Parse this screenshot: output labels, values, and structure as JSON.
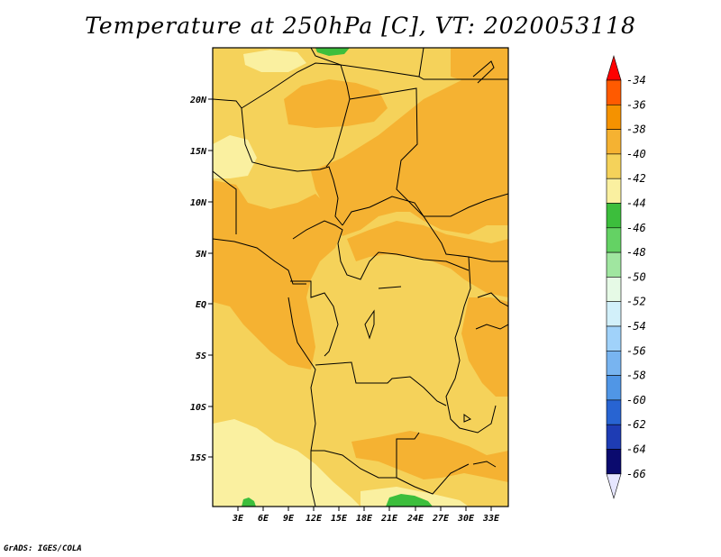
{
  "title": "Temperature at 250hPa [C], VT: 2020053118",
  "footer": "GrADS: IGES/COLA",
  "map": {
    "lon_labels": [
      "3E",
      "6E",
      "9E",
      "12E",
      "15E",
      "18E",
      "21E",
      "24E",
      "27E",
      "30E",
      "33E"
    ],
    "lat_labels": [
      "20N",
      "15N",
      "10N",
      "5N",
      "EQ",
      "5S",
      "10S",
      "15S"
    ]
  },
  "colorbar": {
    "labels": [
      "-34",
      "-36",
      "-38",
      "-40",
      "-42",
      "-44",
      "-46",
      "-48",
      "-50",
      "-52",
      "-54",
      "-56",
      "-58",
      "-60",
      "-62",
      "-64",
      "-66"
    ],
    "colors": [
      "#ff0000",
      "#ff5a00",
      "#f59200",
      "#f5b232",
      "#f5d25a",
      "#faf0a0",
      "#3cbe3c",
      "#64d264",
      "#a0e6a0",
      "#e6fae6",
      "#d2f0fa",
      "#a0d2fa",
      "#78b4f0",
      "#5096e6",
      "#2864d2",
      "#1e3cb4",
      "#0a0a6e",
      "#e6e6ff"
    ]
  },
  "colors": {
    "orange_dark": "#f5b232",
    "orange_light": "#f5d25a",
    "pale": "#faf0a0",
    "green": "#3cbe3c"
  }
}
